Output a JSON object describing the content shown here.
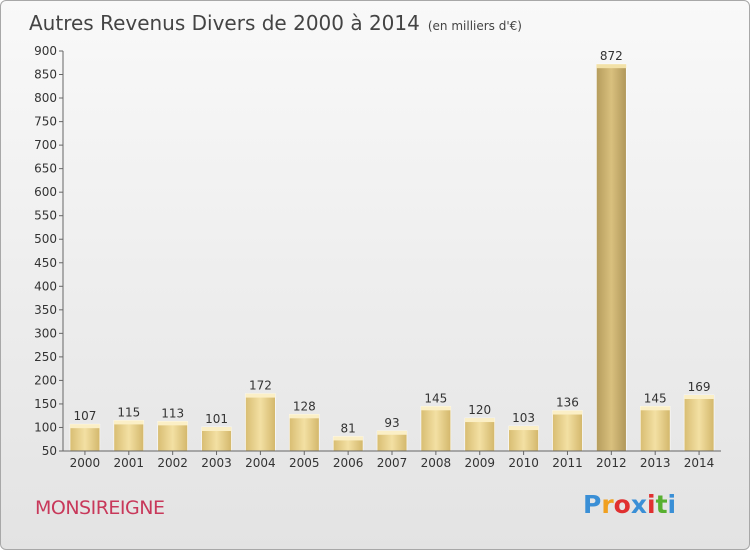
{
  "chart_data": {
    "type": "bar",
    "title": "Autres Revenus Divers de 2000 à 2014",
    "subtitle": "(en milliers d'€)",
    "categories": [
      "2000",
      "2001",
      "2002",
      "2003",
      "2004",
      "2005",
      "2006",
      "2007",
      "2008",
      "2009",
      "2010",
      "2011",
      "2012",
      "2013",
      "2014"
    ],
    "values": [
      107,
      115,
      113,
      101,
      172,
      128,
      81,
      93,
      145,
      120,
      103,
      136,
      872,
      145,
      169
    ],
    "ylim": [
      50,
      900
    ],
    "yticks": [
      50,
      100,
      150,
      200,
      250,
      300,
      350,
      400,
      450,
      500,
      550,
      600,
      650,
      700,
      750,
      800,
      850,
      900
    ],
    "grid": false,
    "bar_color": "#e6cf8a",
    "highlight_color": "#c4ac6a"
  },
  "place_name": "MONSIREIGNE",
  "logo": {
    "letters": [
      "P",
      "r",
      "o",
      "x",
      "i",
      "t",
      "i"
    ],
    "colors": [
      "#3a8fd6",
      "#f0a020",
      "#e03030",
      "#3a8fd6",
      "#e03030",
      "#58b030",
      "#3a8fd6"
    ]
  }
}
